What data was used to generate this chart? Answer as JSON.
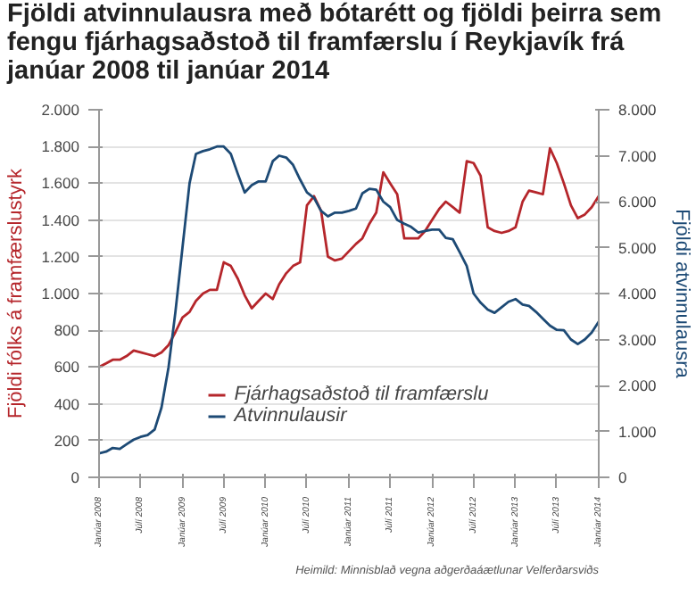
{
  "chart_data": {
    "type": "line",
    "title": "Fjöldi atvinnulausra með bótarétt og fjöldi þeirra sem fengu fjárhagsaðstoð til framfærslu í Reykjavík frá janúar 2008 til janúar 2014",
    "ylabel": "Fjöldi fólks á framfærslustyrk",
    "y2label": "Fjöldi atvinnulausra",
    "annotations": [
      "Heimild: Minnisblað vegna aðgerðaáætlunar Velferðarsviðs"
    ],
    "x": [
      "2008-01",
      "2008-02",
      "2008-03",
      "2008-04",
      "2008-05",
      "2008-06",
      "2008-07",
      "2008-08",
      "2008-09",
      "2008-10",
      "2008-11",
      "2008-12",
      "2009-01",
      "2009-02",
      "2009-03",
      "2009-04",
      "2009-05",
      "2009-06",
      "2009-07",
      "2009-08",
      "2009-09",
      "2009-10",
      "2009-11",
      "2009-12",
      "2010-01",
      "2010-02",
      "2010-03",
      "2010-04",
      "2010-05",
      "2010-06",
      "2010-07",
      "2010-08",
      "2010-09",
      "2010-10",
      "2010-11",
      "2010-12",
      "2011-01",
      "2011-02",
      "2011-03",
      "2011-04",
      "2011-05",
      "2011-06",
      "2011-07",
      "2011-08",
      "2011-09",
      "2011-10",
      "2011-11",
      "2011-12",
      "2012-01",
      "2012-02",
      "2012-03",
      "2012-04",
      "2012-05",
      "2012-06",
      "2012-07",
      "2012-08",
      "2012-09",
      "2012-10",
      "2012-11",
      "2012-12",
      "2013-01",
      "2013-02",
      "2013-03",
      "2013-04",
      "2013-05",
      "2013-06",
      "2013-07",
      "2013-08",
      "2013-09",
      "2013-10",
      "2013-11",
      "2013-12",
      "2014-01"
    ],
    "series": [
      {
        "name": "Fjárhagsaðstoð til framfærslu",
        "color": "#b5262b",
        "values": [
          600,
          620,
          640,
          640,
          660,
          690,
          680,
          670,
          660,
          680,
          720,
          790,
          870,
          900,
          960,
          1000,
          1020,
          1020,
          1170,
          1150,
          1080,
          990,
          920,
          960,
          1000,
          970,
          1050,
          1110,
          1150,
          1170,
          1480,
          1530,
          1450,
          1200,
          1180,
          1190,
          1230,
          1270,
          1300,
          1380,
          1440,
          1660,
          1600,
          1540,
          1300,
          1300,
          1300,
          1340,
          1400,
          1460,
          1500,
          1470,
          1440,
          1720,
          1710,
          1640,
          1360,
          1340,
          1330,
          1340,
          1360,
          1500,
          1560,
          1550,
          1540,
          1790,
          1710,
          1600,
          1480,
          1410,
          1430,
          1470,
          1530
        ]
      },
      {
        "name": "Atvinnulausir",
        "color": "#1d4a75",
        "axis": "y2",
        "values": [
          520,
          560,
          640,
          620,
          720,
          820,
          880,
          920,
          1040,
          1520,
          2400,
          3600,
          5000,
          6400,
          7040,
          7100,
          7140,
          7200,
          7200,
          7040,
          6600,
          6200,
          6360,
          6440,
          6440,
          6880,
          7000,
          6960,
          6800,
          6480,
          6200,
          6080,
          5800,
          5680,
          5760,
          5760,
          5800,
          5850,
          6180,
          6280,
          6260,
          6000,
          5880,
          5600,
          5520,
          5450,
          5330,
          5360,
          5390,
          5390,
          5210,
          5180,
          4900,
          4600,
          4000,
          3800,
          3650,
          3580,
          3700,
          3820,
          3880,
          3760,
          3730,
          3600,
          3450,
          3300,
          3210,
          3200,
          3000,
          2900,
          3000,
          3150,
          3390
        ]
      }
    ],
    "xlim": [
      "2008-01",
      "2014-01"
    ],
    "xticks": [
      {
        "value": "2008-01",
        "label": "Janúar 2008"
      },
      {
        "value": "2008-07",
        "label": "Júlí 2008"
      },
      {
        "value": "2009-01",
        "label": "Janúar 2009"
      },
      {
        "value": "2009-07",
        "label": "Júlí 2009"
      },
      {
        "value": "2010-01",
        "label": "Janúar 2010"
      },
      {
        "value": "2010-07",
        "label": "Júlí 2010"
      },
      {
        "value": "2011-01",
        "label": "Janúar 2011"
      },
      {
        "value": "2011-07",
        "label": "Júlí 2011"
      },
      {
        "value": "2012-01",
        "label": "Janúar 2012"
      },
      {
        "value": "2012-07",
        "label": "Júlí 2012"
      },
      {
        "value": "2013-01",
        "label": "Janúar 2013"
      },
      {
        "value": "2013-07",
        "label": "Júlí 2013"
      },
      {
        "value": "2014-01",
        "label": "Janúar 2014"
      }
    ],
    "ylim": [
      0,
      2000
    ],
    "yticks": [
      {
        "value": 0,
        "label": "0"
      },
      {
        "value": 200,
        "label": "200"
      },
      {
        "value": 400,
        "label": "400"
      },
      {
        "value": 600,
        "label": "600"
      },
      {
        "value": 800,
        "label": "800"
      },
      {
        "value": 1000,
        "label": "1.000"
      },
      {
        "value": 1200,
        "label": "1.200"
      },
      {
        "value": 1400,
        "label": "1.400"
      },
      {
        "value": 1600,
        "label": "1.600"
      },
      {
        "value": 1800,
        "label": "1.800"
      },
      {
        "value": 2000,
        "label": "2.000"
      }
    ],
    "y2lim": [
      0,
      8000
    ],
    "y2ticks": [
      {
        "value": 0,
        "label": "0"
      },
      {
        "value": 1000,
        "label": "1.000"
      },
      {
        "value": 2000,
        "label": "2.000"
      },
      {
        "value": 3000,
        "label": "3.000"
      },
      {
        "value": 4000,
        "label": "4.000"
      },
      {
        "value": 5000,
        "label": "5.000"
      },
      {
        "value": 6000,
        "label": "6.000"
      },
      {
        "value": 7000,
        "label": "7.000"
      },
      {
        "value": 8000,
        "label": "8.000"
      }
    ],
    "grid": "y",
    "legend": "bottom",
    "marker": "none",
    "line_style": "solid"
  }
}
